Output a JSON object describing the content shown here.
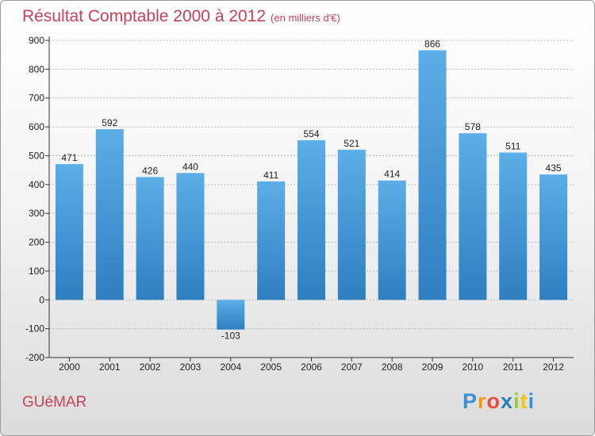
{
  "header": {
    "title": "Résultat Comptable 2000 à 2012",
    "subtitle": "(en milliers d'€)"
  },
  "footer": {
    "commune": "GUéMAR",
    "logo": {
      "letters": [
        "P",
        "r",
        "o",
        "x",
        "i",
        "t",
        "i"
      ],
      "colors": [
        "#3d8fd6",
        "#f39c12",
        "#e74c3c",
        "#2980b9",
        "#9acd32",
        "#f1c40f",
        "#3d8fd6"
      ]
    }
  },
  "colors": {
    "title": "#c8405a",
    "bar_top": "#5caee8",
    "bar_bottom": "#2d7fc0",
    "grid": "#bdbdbd"
  },
  "chart_data": {
    "type": "bar",
    "title": "Résultat Comptable 2000 à 2012",
    "subtitle": "(en milliers d'€)",
    "categories": [
      "2000",
      "2001",
      "2002",
      "2003",
      "2004",
      "2005",
      "2006",
      "2007",
      "2008",
      "2009",
      "2010",
      "2011",
      "2012"
    ],
    "values": [
      471,
      592,
      426,
      440,
      -103,
      411,
      554,
      521,
      414,
      866,
      578,
      511,
      435
    ],
    "value_labels": [
      "471",
      "592",
      "426",
      "440",
      "-103",
      "411",
      "554",
      "521",
      "414",
      "866",
      "578",
      "511",
      "435"
    ],
    "yticks": [
      -200,
      -100,
      0,
      100,
      200,
      300,
      400,
      500,
      600,
      700,
      800,
      900
    ],
    "ytick_labels": [
      "-200",
      "-100",
      "0",
      "100",
      "200",
      "300",
      "400",
      "500",
      "600",
      "700",
      "800",
      "900"
    ],
    "ylim": [
      -200,
      900
    ],
    "grid": true,
    "legend": false
  }
}
